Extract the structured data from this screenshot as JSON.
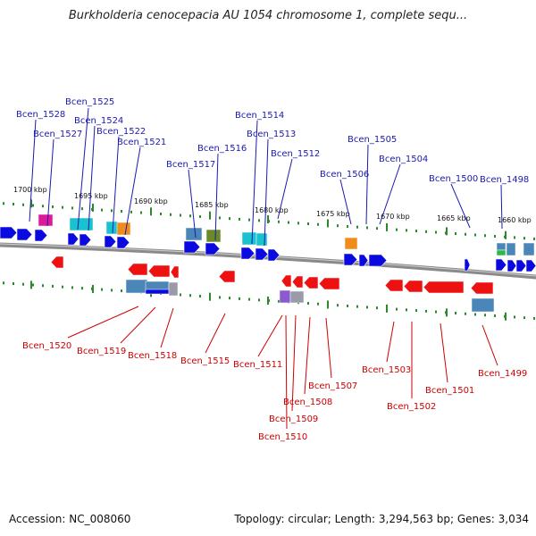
{
  "title": "Burkholderia cenocepacia AU 1054 chromosome 1, complete sequ...",
  "footer": {
    "accession": "Accession: NC_008060",
    "summary": "Topology: circular; Length: 3,294,563 bp; Genes: 3,034"
  },
  "colors": {
    "forward_gene": "#0a0ae0",
    "reverse_gene": "#ee1111",
    "forward_label": "#1a1ab0",
    "reverse_label": "#cc0000",
    "backbone": "#8a8a8a",
    "tick": "#2a8a2a",
    "feature_steelblue": "#4a86b8",
    "feature_cyan": "#19c2cf",
    "feature_orange": "#f08c1c",
    "feature_magenta": "#e0189a",
    "feature_olive": "#6a8a2a",
    "feature_green": "#2ab84a",
    "feature_purple": "#8a5ad0",
    "feature_gray": "#9a9aa8"
  },
  "kbp_marks": [
    "1700 kbp",
    "1695 kbp",
    "1690 kbp",
    "1685 kbp",
    "1680 kbp",
    "1675 kbp",
    "1670 kbp",
    "1665 kbp",
    "1660 kbp"
  ],
  "forward_genes": [
    "Bcen_1528",
    "Bcen_1527",
    "Bcen_1525",
    "Bcen_1524",
    "Bcen_1522",
    "Bcen_1521",
    "Bcen_1517",
    "Bcen_1516",
    "Bcen_1514",
    "Bcen_1513",
    "Bcen_1512",
    "Bcen_1506",
    "Bcen_1505",
    "Bcen_1504",
    "Bcen_1500",
    "Bcen_1498"
  ],
  "reverse_genes": [
    "Bcen_1520",
    "Bcen_1519",
    "Bcen_1518",
    "Bcen_1515",
    "Bcen_1511",
    "Bcen_1510",
    "Bcen_1509",
    "Bcen_1508",
    "Bcen_1507",
    "Bcen_1503",
    "Bcen_1502",
    "Bcen_1501",
    "Bcen_1499"
  ]
}
